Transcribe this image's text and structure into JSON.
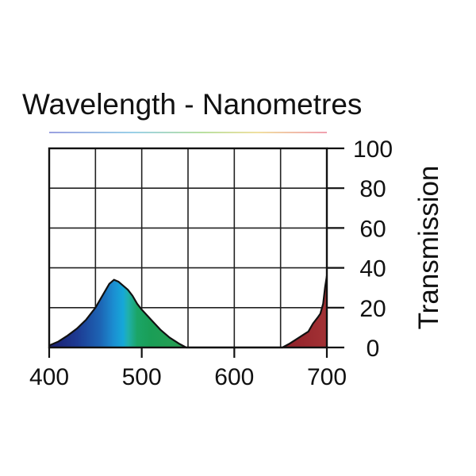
{
  "chart_data": {
    "type": "area",
    "title": "Wavelength - Nanometres",
    "xlabel": "",
    "ylabel": "Transmission",
    "xlim": [
      400,
      700
    ],
    "ylim": [
      0,
      100
    ],
    "x_ticks": [
      400,
      500,
      600,
      700
    ],
    "x_gridlines": [
      400,
      450,
      500,
      550,
      600,
      650,
      700
    ],
    "y_ticks": [
      0,
      20,
      40,
      60,
      80,
      100
    ],
    "grid": true,
    "y_axis_side": "right",
    "series": [
      {
        "name": "transmission",
        "x": [
          400,
          410,
          420,
          430,
          440,
          450,
          460,
          465,
          470,
          475,
          480,
          485,
          490,
          495,
          500,
          510,
          520,
          530,
          540,
          548,
          560,
          600,
          640,
          652,
          660,
          670,
          680,
          685,
          690,
          693,
          696,
          698,
          700
        ],
        "y": [
          1,
          3,
          6,
          9.5,
          14,
          20,
          28,
          32,
          34,
          33,
          31,
          29,
          26,
          22,
          19,
          14,
          9,
          5,
          2,
          0,
          0,
          0,
          0,
          0,
          2,
          5,
          8,
          12,
          15,
          17,
          22,
          30,
          36
        ]
      }
    ],
    "spectrum_colors": {
      "400": "#1c1e6e",
      "430": "#1d3a92",
      "455": "#1d64b4",
      "470": "#1b8fd2",
      "480": "#16a8d8",
      "485": "#20b0ae",
      "495": "#1ba567",
      "510": "#1a9e56",
      "548": "#2a9e52",
      "650": "#8e1f28",
      "700": "#a33235"
    }
  }
}
